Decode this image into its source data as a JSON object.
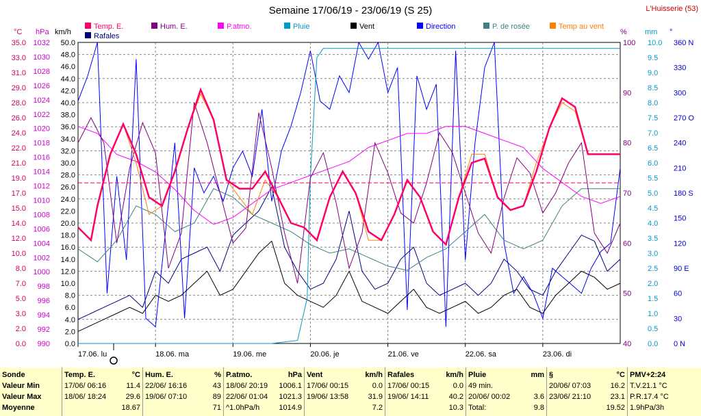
{
  "chart_data": {
    "type": "line",
    "title": "Semaine 17/06/19 - 23/06/19 (S 25)",
    "station": "L'Huisserie (53)",
    "x_unit": "hours since 17.06 00:00",
    "xlim": [
      0,
      168
    ],
    "x_tick_labels": [
      "17.06. lu",
      "18.06. ma",
      "19.06. me",
      "20.06. je",
      "21.06. ve",
      "22.06. sa",
      "23.06. di"
    ],
    "axes": {
      "temp_c": {
        "label": "°C",
        "ticks": [
          "35.0",
          "33.0",
          "31.0",
          "29.0",
          "28.0",
          "26.0",
          "24.0",
          "22.0",
          "21.0",
          "19.0",
          "17.0",
          "15.0",
          "14.0",
          "12.0",
          "10.0",
          "8.0",
          "7.0",
          "5.0",
          "3.0",
          "2.0",
          "0.0"
        ],
        "range": [
          0,
          35
        ]
      },
      "pressure_hpa": {
        "label": "hPa",
        "ticks": [
          "1032",
          "1030",
          "1028",
          "1026",
          "1024",
          "1022",
          "1020",
          "1018",
          "1016",
          "1014",
          "1012",
          "1010",
          "1008",
          "1006",
          "1004",
          "1002",
          "1000",
          "998",
          "996",
          "994",
          "992",
          "990"
        ],
        "range": [
          990,
          1033
        ]
      },
      "wind_kmh": {
        "label": "km/h",
        "ticks": [
          "50.0",
          "48.0",
          "46.0",
          "44.0",
          "42.0",
          "40.0",
          "38.0",
          "36.0",
          "34.0",
          "32.0",
          "30.0",
          "28.0",
          "26.0",
          "24.0",
          "22.0",
          "20.0",
          "18.0",
          "16.0",
          "14.0",
          "12.0",
          "10.0",
          "8.0",
          "6.0",
          "4.0",
          "2.0",
          "0.0"
        ],
        "range": [
          0,
          50
        ]
      },
      "humidity_pct": {
        "label": "%",
        "ticks": [
          "100",
          "90",
          "80",
          "70",
          "60",
          "50",
          "40"
        ],
        "range": [
          40,
          100
        ]
      },
      "rain_mm": {
        "label": "mm",
        "ticks": [
          "10.0",
          "9.5",
          "9.0",
          "8.5",
          "8.0",
          "7.5",
          "7.0",
          "6.5",
          "6.0",
          "5.5",
          "5.0",
          "4.5",
          "4.0",
          "3.5",
          "3.0",
          "2.5",
          "2.0",
          "1.5",
          "1.0",
          "0.5",
          "0.0"
        ],
        "range": [
          0,
          10
        ]
      },
      "direction_deg": {
        "label": "°",
        "ticks": [
          "360 N",
          "330",
          "300",
          "270 O",
          "240",
          "210",
          "180 S",
          "150",
          "120",
          "90 E",
          "60",
          "30",
          "0 N"
        ],
        "range": [
          0,
          360
        ]
      }
    },
    "legend": [
      {
        "name": "Temp. E.",
        "color": "#ff0066"
      },
      {
        "name": "Hum. E.",
        "color": "#800080"
      },
      {
        "name": "P.atmo.",
        "color": "#ff00ff"
      },
      {
        "name": "Pluie",
        "color": "#0099cc"
      },
      {
        "name": "Vent",
        "color": "#000000"
      },
      {
        "name": "Direction",
        "color": "#0000ff"
      },
      {
        "name": "P. de rosée",
        "color": "#408080"
      },
      {
        "name": "Temp au vent",
        "color": "#ff8000"
      },
      {
        "name": "Rafales",
        "color": "#000080"
      }
    ],
    "series": {
      "temp": {
        "axis": "temp_c",
        "x": [
          0,
          4,
          6,
          10,
          14,
          18,
          22,
          26,
          30,
          34,
          38,
          42,
          46,
          50,
          54,
          58,
          62,
          66,
          70,
          74,
          78,
          82,
          86,
          90,
          94,
          98,
          102,
          106,
          110,
          114,
          118,
          122,
          126,
          130,
          134,
          138,
          142,
          146,
          150,
          154,
          158,
          162,
          166,
          168
        ],
        "y": [
          13.5,
          12,
          16,
          22,
          25.5,
          22,
          17,
          16,
          20,
          25,
          29.5,
          26,
          19,
          18,
          18,
          20,
          17,
          14,
          13.5,
          12,
          17,
          20,
          17.5,
          13,
          12,
          15,
          19,
          17,
          13,
          11.5,
          17,
          21,
          21.5,
          17,
          15.5,
          16,
          20,
          25,
          28.5,
          27.5,
          22,
          22,
          22,
          22
        ]
      },
      "dew": {
        "axis": "temp_c",
        "x": [
          0,
          6,
          12,
          18,
          24,
          30,
          36,
          42,
          48,
          54,
          60,
          66,
          72,
          78,
          84,
          90,
          96,
          102,
          108,
          114,
          120,
          126,
          132,
          138,
          144,
          150,
          156,
          162,
          168
        ],
        "y": [
          11,
          9.5,
          12,
          16,
          15,
          13,
          14,
          18,
          17,
          15,
          14,
          13,
          11.5,
          10.5,
          11,
          10,
          9,
          8.5,
          10,
          11,
          13,
          15,
          12,
          11,
          12,
          16,
          18,
          18,
          18
        ]
      },
      "windchill": {
        "axis": "temp_c",
        "x": [
          0,
          4,
          6,
          10,
          14,
          18,
          22,
          26,
          30,
          34,
          38,
          42,
          46,
          50,
          54,
          58,
          62,
          66,
          70,
          74,
          78,
          82,
          86,
          90,
          94,
          98,
          102,
          106,
          110,
          114,
          118,
          122,
          126,
          130,
          134,
          138,
          142,
          146,
          150,
          154,
          158,
          162,
          166,
          168
        ],
        "y": [
          13.5,
          12,
          16,
          22,
          25.5,
          21,
          15,
          16,
          20,
          25,
          29,
          26,
          19,
          17,
          15,
          19,
          17,
          14,
          13.5,
          12,
          17,
          20,
          17.5,
          12,
          12,
          15,
          19,
          17,
          13,
          11.5,
          17,
          22,
          22,
          17,
          15.5,
          16,
          21,
          25,
          28,
          27,
          22,
          22,
          22,
          22
        ]
      },
      "humidity": {
        "axis": "humidity_pct",
        "x": [
          0,
          4,
          8,
          12,
          16,
          20,
          24,
          28,
          32,
          36,
          40,
          44,
          48,
          52,
          56,
          60,
          64,
          68,
          72,
          76,
          80,
          84,
          88,
          92,
          96,
          100,
          104,
          108,
          112,
          116,
          120,
          124,
          128,
          132,
          136,
          140,
          144,
          148,
          152,
          156,
          160,
          164,
          168
        ],
        "y": [
          80,
          85,
          80,
          60,
          75,
          84,
          78,
          55,
          62,
          88,
          80,
          70,
          60,
          63,
          86,
          75,
          62,
          52,
          73,
          78,
          68,
          55,
          62,
          80,
          74,
          66,
          64,
          72,
          82,
          78,
          70,
          62,
          58,
          69,
          77,
          74,
          66,
          70,
          76,
          80,
          62,
          58,
          64
        ]
      },
      "pressure": {
        "axis": "pressure_hpa",
        "x": [
          0,
          6,
          12,
          18,
          24,
          30,
          36,
          42,
          48,
          54,
          60,
          66,
          72,
          78,
          84,
          90,
          96,
          102,
          108,
          114,
          120,
          126,
          132,
          138,
          144,
          150,
          156,
          162,
          168
        ],
        "y": [
          1021,
          1020,
          1017,
          1016,
          1014.5,
          1012,
          1009,
          1007,
          1008,
          1010,
          1012,
          1013,
          1014,
          1015,
          1016,
          1018,
          1019,
          1020,
          1020,
          1021,
          1021,
          1020,
          1019,
          1018,
          1015,
          1013,
          1011,
          1010,
          1011
        ]
      },
      "rain": {
        "axis": "rain_mm",
        "x": [
          0,
          60,
          68,
          71,
          72,
          74,
          76,
          80,
          96,
          120,
          168
        ],
        "y": [
          0,
          0,
          0.1,
          1.5,
          5.5,
          9.5,
          9.8,
          9.8,
          9.8,
          9.8,
          9.8
        ]
      },
      "wind": {
        "axis": "wind_kmh",
        "x": [
          0,
          4,
          8,
          12,
          16,
          20,
          24,
          28,
          32,
          36,
          40,
          44,
          48,
          52,
          56,
          60,
          64,
          68,
          72,
          76,
          80,
          84,
          88,
          92,
          96,
          100,
          104,
          108,
          112,
          116,
          120,
          124,
          128,
          132,
          136,
          140,
          144,
          148,
          152,
          156,
          160,
          164,
          168
        ],
        "y": [
          2,
          3,
          4,
          5,
          6,
          5,
          8,
          7,
          8,
          10,
          12,
          8,
          9,
          12,
          15,
          17,
          10,
          8,
          7,
          6,
          8,
          12,
          7,
          6,
          5,
          7,
          9,
          6,
          5,
          6,
          7,
          5,
          6,
          8,
          9,
          6,
          5,
          8,
          10,
          12,
          11,
          9,
          10
        ]
      },
      "gust": {
        "axis": "wind_kmh",
        "x": [
          0,
          4,
          8,
          12,
          16,
          20,
          24,
          28,
          32,
          36,
          40,
          44,
          48,
          52,
          56,
          60,
          64,
          68,
          72,
          76,
          80,
          84,
          88,
          92,
          96,
          100,
          104,
          108,
          112,
          116,
          120,
          124,
          128,
          132,
          136,
          140,
          144,
          148,
          152,
          156,
          160,
          164,
          168
        ],
        "y": [
          4,
          5,
          6,
          7,
          8,
          6,
          12,
          10,
          14,
          15,
          16,
          12,
          18,
          20,
          22,
          26,
          16,
          12,
          9,
          10,
          14,
          22,
          12,
          9,
          10,
          14,
          16,
          10,
          8,
          9,
          10,
          8,
          10,
          14,
          12,
          9,
          8,
          12,
          15,
          18,
          17,
          12,
          14
        ]
      },
      "direction": {
        "axis": "direction_deg",
        "x": [
          0,
          3,
          6,
          9,
          12,
          15,
          18,
          21,
          24,
          27,
          30,
          33,
          36,
          39,
          42,
          45,
          48,
          51,
          54,
          57,
          60,
          63,
          66,
          69,
          72,
          75,
          78,
          81,
          84,
          87,
          90,
          93,
          96,
          99,
          102,
          105,
          108,
          111,
          114,
          117,
          120,
          123,
          126,
          129,
          132,
          135,
          138,
          141,
          144,
          147,
          150,
          153,
          156,
          159,
          162,
          165,
          168
        ],
        "y": [
          290,
          320,
          360,
          60,
          200,
          100,
          340,
          30,
          20,
          130,
          240,
          30,
          210,
          180,
          200,
          170,
          210,
          230,
          200,
          280,
          170,
          230,
          260,
          300,
          350,
          290,
          280,
          320,
          300,
          360,
          340,
          360,
          300,
          330,
          40,
          320,
          280,
          310,
          20,
          350,
          100,
          240,
          330,
          360,
          120,
          60,
          80,
          60,
          30,
          90,
          80,
          70,
          60,
          90,
          110,
          120,
          210
        ]
      }
    }
  },
  "stats": {
    "sonde": {
      "title": "Sonde",
      "rows": [
        "Valeur Min",
        "Valeur Max",
        "Moyenne"
      ]
    },
    "temp": {
      "title": "Temp. E.",
      "unit": "°C",
      "min_date": "17/06/ 06:16",
      "min_val": "11.4",
      "max_date": "18/06/ 18:24",
      "max_val": "29.6",
      "avg": "18.67"
    },
    "hum": {
      "title": "Hum. E.",
      "unit": "%",
      "min_date": "22/06/ 16:16",
      "min_val": "43",
      "max_date": "19/06/ 07:10",
      "max_val": "89",
      "avg": "71"
    },
    "patmo": {
      "title": "P.atmo.",
      "unit": "hPa",
      "min_date": "18/06/ 20:19",
      "min_val": "1006.1",
      "max_date": "22/06/ 01:04",
      "max_val": "1021.3",
      "avg_label": "^1.0hPa/h",
      "avg": "1014.9"
    },
    "vent": {
      "title": "Vent",
      "unit": "km/h",
      "min_date": "17/06/ 00:15",
      "min_val": "0.0",
      "max_date": "19/06/ 13:58",
      "max_val": "31.9",
      "avg": "7.2"
    },
    "rafales": {
      "title": "Rafales",
      "unit": "km/h",
      "min_date": "17/06/ 00:15",
      "min_val": "0.0",
      "max_date": "19/06/ 14:11",
      "max_val": "40.2",
      "avg": "10.3"
    },
    "pluie": {
      "title": "Pluie",
      "unit": "mm",
      "r1_label": "49 min.",
      "r1_val": "",
      "r2_label": "20/06/ 00:02",
      "r2_val": "3.6",
      "r3_label": "Total:",
      "r3_val": "9.8"
    },
    "rosee": {
      "title": "§",
      "unit": "°C",
      "min_date": "20/06/ 07:03",
      "min_val": "16.2",
      "max_date": "23/06/ 21:10",
      "max_val": "23.1",
      "avg": "19.52"
    },
    "pmv": {
      "title": "PMV+2:24",
      "r1": "T.V.21.1 °C",
      "r2": "P.R.17.4 °C",
      "r3": "1.9hPa/3h"
    }
  }
}
